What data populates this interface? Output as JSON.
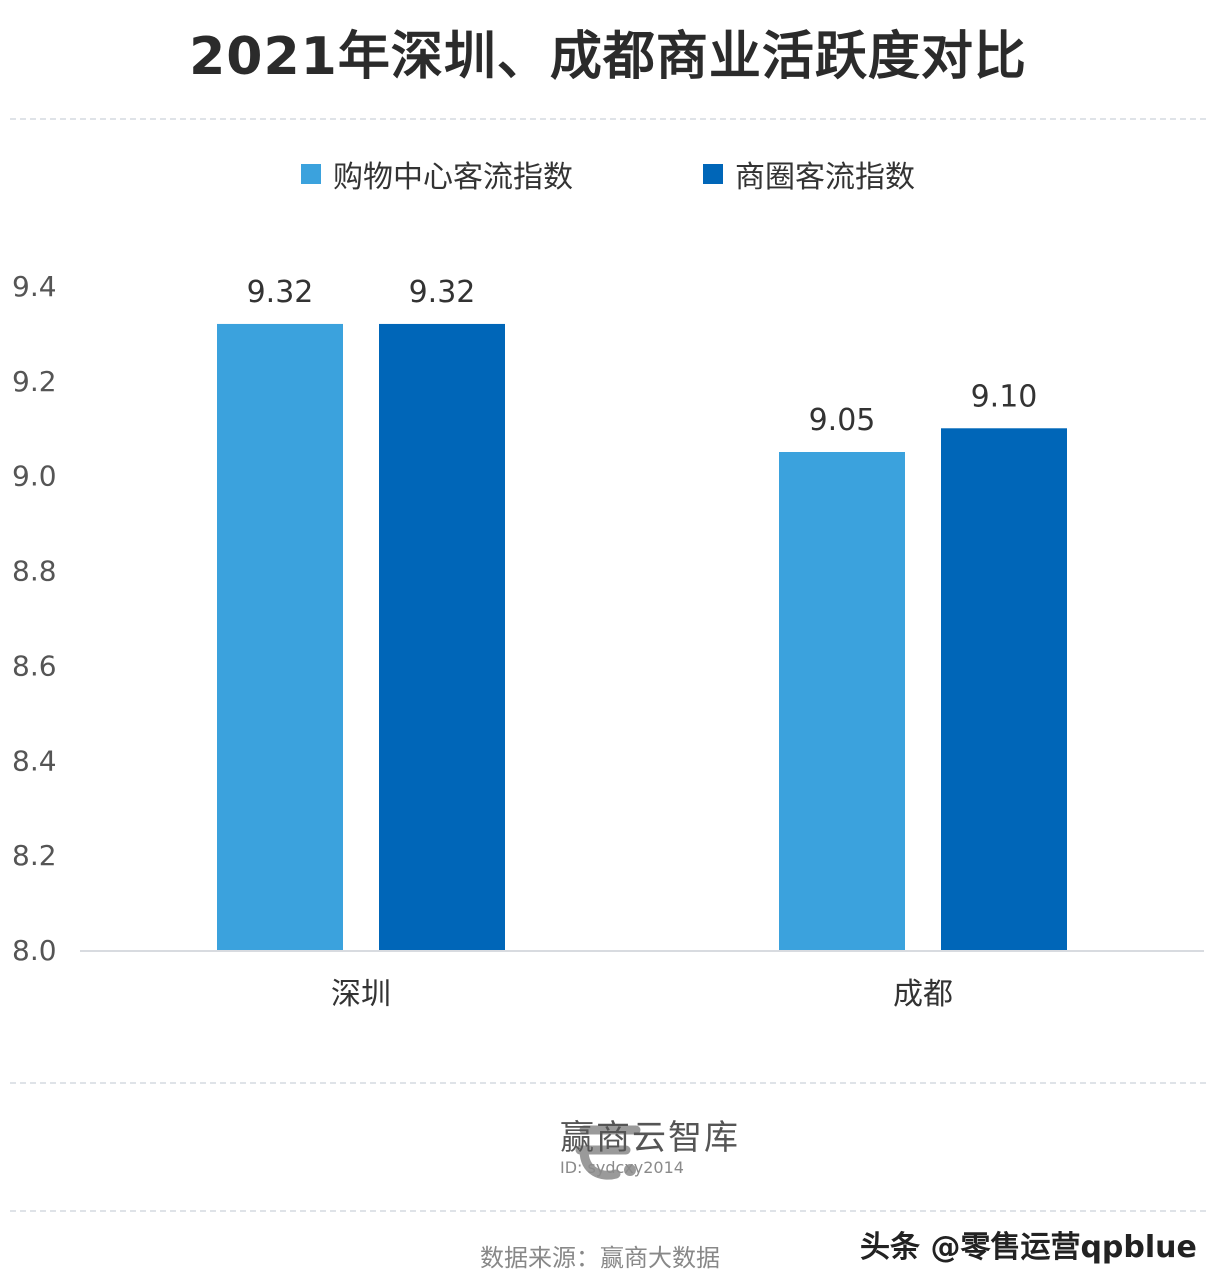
{
  "chart_data": {
    "type": "bar",
    "title": "2021年深圳、成都商业活跃度对比",
    "categories": [
      "深圳",
      "成都"
    ],
    "series": [
      {
        "name": "购物中心客流指数",
        "values": [
          9.32,
          9.05
        ],
        "color": "#3ba2dd"
      },
      {
        "name": "商圈客流指数",
        "values": [
          9.32,
          9.1
        ],
        "color": "#0066b8"
      }
    ],
    "data_labels": [
      [
        "9.32",
        "9.05"
      ],
      [
        "9.32",
        "9.10"
      ]
    ],
    "ylim": [
      8.0,
      9.4
    ],
    "yticks": [
      "8.0",
      "8.2",
      "8.4",
      "8.6",
      "8.8",
      "9.0",
      "9.2",
      "9.4"
    ],
    "xlabel": "",
    "ylabel": "",
    "grid": false,
    "legend_position": "top-center"
  },
  "footer": {
    "logo_icon": "e-logo-icon",
    "brand_name": "赢商云智库",
    "brand_id": "ID: sydcxy2014",
    "source": "数据来源：赢商大数据",
    "watermark": "头条 @零售运营qpblue"
  }
}
